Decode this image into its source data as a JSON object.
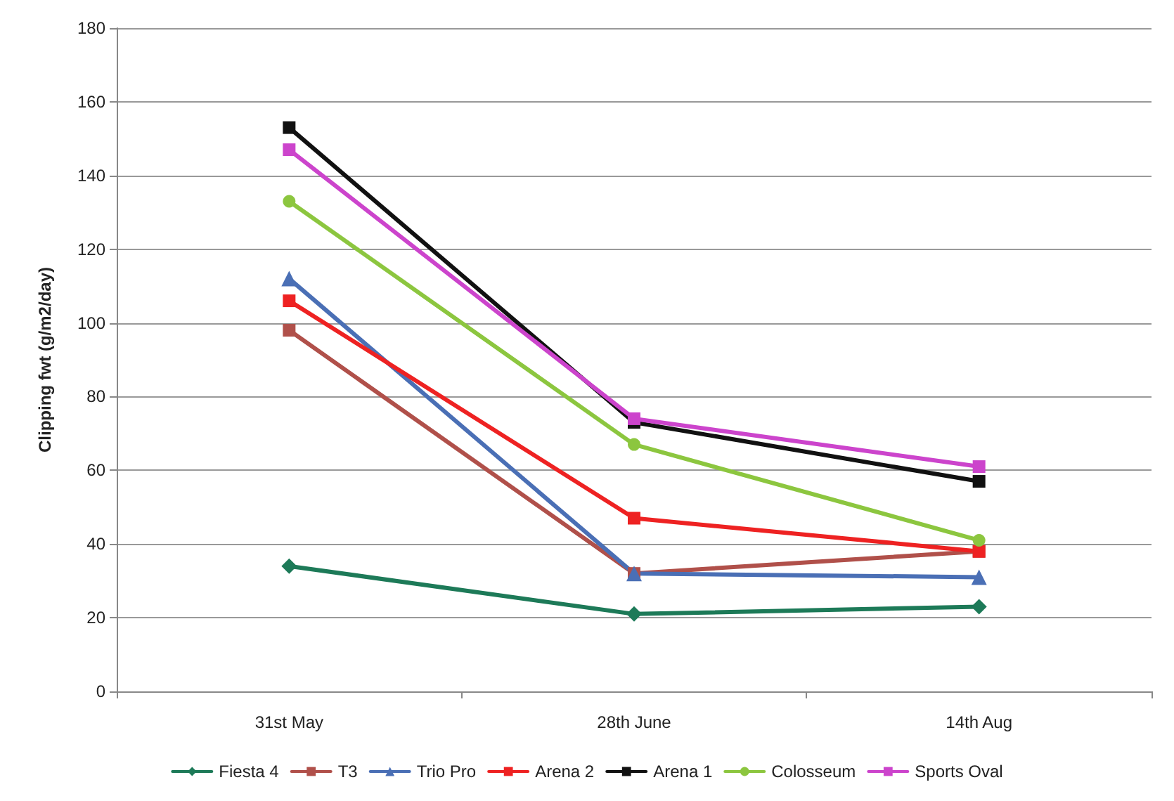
{
  "chart_data": {
    "type": "line",
    "ylabel": "Clipping fwt (g/m2/day)",
    "categories": [
      "31st May",
      "28th June",
      "14th Aug"
    ],
    "series": [
      {
        "name": "Fiesta 4",
        "color": "#1d7a58",
        "marker": "diamond",
        "values": [
          34,
          21,
          23
        ]
      },
      {
        "name": "T3",
        "color": "#b0504a",
        "marker": "square",
        "values": [
          98,
          32,
          38
        ]
      },
      {
        "name": "Trio Pro",
        "color": "#4a6fb5",
        "marker": "triangle",
        "values": [
          112,
          32,
          31
        ]
      },
      {
        "name": "Arena 2",
        "color": "#ee2222",
        "marker": "square",
        "values": [
          106,
          47,
          38
        ]
      },
      {
        "name": "Arena 1",
        "color": "#111111",
        "marker": "square",
        "values": [
          153,
          73,
          57
        ]
      },
      {
        "name": "Colosseum",
        "color": "#8cc63f",
        "marker": "circle",
        "values": [
          133,
          67,
          41
        ]
      },
      {
        "name": "Sports Oval",
        "color": "#cc44cc",
        "marker": "square",
        "values": [
          147,
          74,
          61
        ]
      }
    ],
    "ylim": [
      0,
      180
    ],
    "yticks": [
      0,
      20,
      40,
      60,
      80,
      100,
      120,
      140,
      160,
      180
    ],
    "grid": "y",
    "legend": "bottom",
    "line_style": "solid"
  }
}
